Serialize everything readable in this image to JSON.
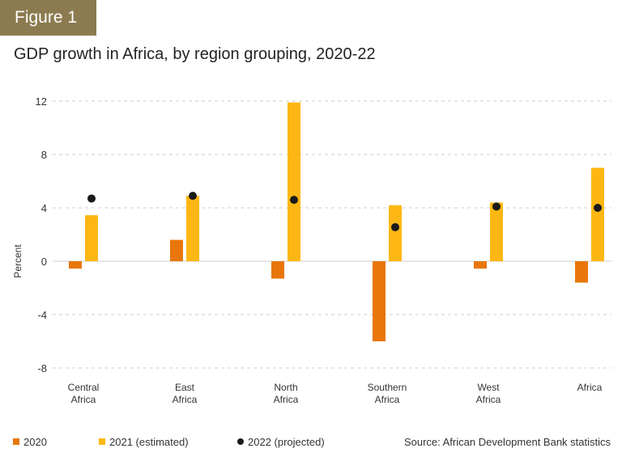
{
  "header": {
    "figure_label": "Figure 1"
  },
  "chart_data": {
    "type": "bar",
    "title": "GDP growth in Africa, by region grouping, 2020-22",
    "ylabel": "Percent",
    "xlabel": "",
    "ylim": [
      -8,
      12
    ],
    "yticks": [
      12,
      8,
      4,
      0,
      -4,
      -8
    ],
    "grid": true,
    "legend_placement": "bottom",
    "categories": [
      [
        "Central",
        "Africa"
      ],
      [
        "East",
        "Africa"
      ],
      [
        "North",
        "Africa"
      ],
      [
        "Southern",
        "Africa"
      ],
      [
        "West",
        "Africa"
      ],
      [
        "Africa"
      ]
    ],
    "series": [
      {
        "name": "2020",
        "kind": "bar",
        "color": "#e8760a",
        "values": [
          -0.55,
          1.6,
          -1.3,
          -6.0,
          -0.55,
          -1.6
        ]
      },
      {
        "name": "2021 (estimated)",
        "kind": "bar",
        "color": "#fdb714",
        "values": [
          3.45,
          4.9,
          11.9,
          4.2,
          4.4,
          7.0
        ]
      },
      {
        "name": "2022 (projected)",
        "kind": "dot",
        "color": "#1a1a1a",
        "values": [
          4.7,
          4.9,
          4.6,
          2.55,
          4.1,
          4.0
        ]
      }
    ],
    "source": "Source: African Development Bank statistics"
  }
}
